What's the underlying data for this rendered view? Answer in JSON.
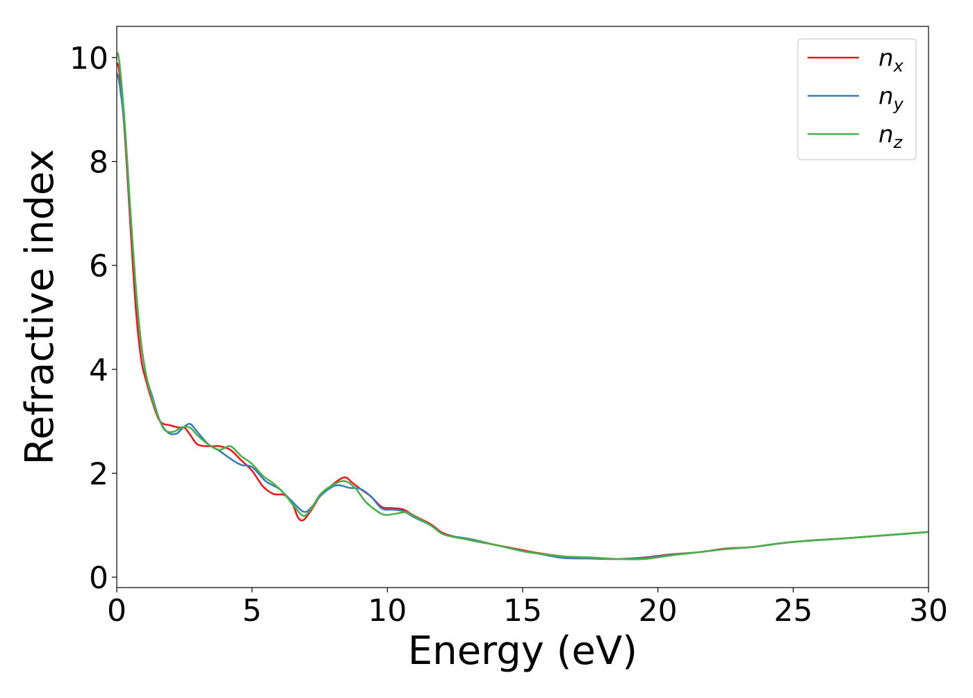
{
  "chart_data": {
    "type": "line",
    "xlabel": "Energy (eV)",
    "ylabel": "Refractive index",
    "xlim": [
      0,
      30
    ],
    "ylim": [
      -0.2,
      10.6
    ],
    "xticks": [
      0,
      5,
      10,
      15,
      20,
      25,
      30
    ],
    "yticks": [
      0,
      2,
      4,
      6,
      8,
      10
    ],
    "xtick_labels": [
      "0",
      "5",
      "10",
      "15",
      "20",
      "25",
      "30"
    ],
    "ytick_labels": [
      "0",
      "2",
      "4",
      "6",
      "8",
      "10"
    ],
    "grid": false,
    "legend_position": "top-right",
    "series": [
      {
        "name": "n_x",
        "legend_base": "n",
        "legend_sub": "x",
        "color": "#e41a1c",
        "points": [
          [
            0,
            9.9
          ],
          [
            0.1,
            9.7
          ],
          [
            0.3,
            8.5
          ],
          [
            0.5,
            6.8
          ],
          [
            0.7,
            5.2
          ],
          [
            0.9,
            4.2
          ],
          [
            1.1,
            3.75
          ],
          [
            1.3,
            3.4
          ],
          [
            1.6,
            3.0
          ],
          [
            2.0,
            2.92
          ],
          [
            2.3,
            2.88
          ],
          [
            2.5,
            2.88
          ],
          [
            2.7,
            2.75
          ],
          [
            3.0,
            2.55
          ],
          [
            3.5,
            2.52
          ],
          [
            3.8,
            2.52
          ],
          [
            4.2,
            2.45
          ],
          [
            4.6,
            2.25
          ],
          [
            5.0,
            2.05
          ],
          [
            5.4,
            1.75
          ],
          [
            5.8,
            1.6
          ],
          [
            6.2,
            1.58
          ],
          [
            6.5,
            1.4
          ],
          [
            6.7,
            1.15
          ],
          [
            6.9,
            1.1
          ],
          [
            7.2,
            1.3
          ],
          [
            7.5,
            1.55
          ],
          [
            7.9,
            1.75
          ],
          [
            8.4,
            1.92
          ],
          [
            8.7,
            1.82
          ],
          [
            9.0,
            1.7
          ],
          [
            9.4,
            1.55
          ],
          [
            9.8,
            1.35
          ],
          [
            10.2,
            1.33
          ],
          [
            10.6,
            1.3
          ],
          [
            11.0,
            1.18
          ],
          [
            11.6,
            1.02
          ],
          [
            12.1,
            0.84
          ],
          [
            13.0,
            0.72
          ],
          [
            14.0,
            0.62
          ],
          [
            15.0,
            0.52
          ],
          [
            15.5,
            0.47
          ],
          [
            16.5,
            0.4
          ],
          [
            17.5,
            0.36
          ],
          [
            18.5,
            0.35
          ],
          [
            19.5,
            0.38
          ],
          [
            20.5,
            0.44
          ],
          [
            21.5,
            0.48
          ],
          [
            22.5,
            0.55
          ],
          [
            23.5,
            0.58
          ],
          [
            24.5,
            0.65
          ],
          [
            25.5,
            0.7
          ],
          [
            27.0,
            0.75
          ],
          [
            28.5,
            0.81
          ],
          [
            30.0,
            0.87
          ]
        ]
      },
      {
        "name": "n_y",
        "legend_base": "n",
        "legend_sub": "y",
        "color": "#377eb8",
        "points": [
          [
            0,
            9.7
          ],
          [
            0.1,
            9.5
          ],
          [
            0.3,
            8.6
          ],
          [
            0.5,
            7.0
          ],
          [
            0.7,
            5.6
          ],
          [
            0.9,
            4.5
          ],
          [
            1.1,
            3.85
          ],
          [
            1.3,
            3.5
          ],
          [
            1.6,
            3.0
          ],
          [
            1.9,
            2.78
          ],
          [
            2.2,
            2.76
          ],
          [
            2.4,
            2.85
          ],
          [
            2.7,
            2.95
          ],
          [
            3.0,
            2.78
          ],
          [
            3.4,
            2.55
          ],
          [
            3.8,
            2.43
          ],
          [
            4.2,
            2.28
          ],
          [
            4.6,
            2.16
          ],
          [
            5.0,
            2.12
          ],
          [
            5.5,
            1.85
          ],
          [
            6.0,
            1.7
          ],
          [
            6.4,
            1.5
          ],
          [
            6.9,
            1.26
          ],
          [
            7.2,
            1.35
          ],
          [
            7.5,
            1.55
          ],
          [
            7.9,
            1.72
          ],
          [
            8.2,
            1.77
          ],
          [
            8.6,
            1.72
          ],
          [
            9.0,
            1.7
          ],
          [
            9.4,
            1.55
          ],
          [
            9.8,
            1.32
          ],
          [
            10.2,
            1.3
          ],
          [
            10.6,
            1.27
          ],
          [
            11.0,
            1.15
          ],
          [
            11.6,
            1.0
          ],
          [
            12.1,
            0.82
          ],
          [
            13.0,
            0.74
          ],
          [
            14.0,
            0.62
          ],
          [
            15.0,
            0.5
          ],
          [
            15.5,
            0.46
          ],
          [
            16.5,
            0.37
          ],
          [
            17.5,
            0.36
          ],
          [
            18.5,
            0.35
          ],
          [
            19.5,
            0.37
          ],
          [
            20.5,
            0.43
          ],
          [
            21.5,
            0.48
          ],
          [
            22.5,
            0.54
          ],
          [
            23.5,
            0.58
          ],
          [
            24.5,
            0.65
          ],
          [
            25.5,
            0.7
          ],
          [
            27.0,
            0.75
          ],
          [
            28.5,
            0.81
          ],
          [
            30.0,
            0.87
          ]
        ]
      },
      {
        "name": "n_z",
        "legend_base": "n",
        "legend_sub": "z",
        "color": "#4daf4a",
        "points": [
          [
            0,
            10.1
          ],
          [
            0.1,
            9.9
          ],
          [
            0.3,
            8.7
          ],
          [
            0.5,
            7.1
          ],
          [
            0.7,
            5.6
          ],
          [
            0.9,
            4.5
          ],
          [
            1.1,
            3.85
          ],
          [
            1.3,
            3.45
          ],
          [
            1.6,
            3.0
          ],
          [
            1.8,
            2.82
          ],
          [
            2.1,
            2.8
          ],
          [
            2.4,
            2.88
          ],
          [
            2.7,
            2.88
          ],
          [
            3.0,
            2.72
          ],
          [
            3.4,
            2.55
          ],
          [
            3.8,
            2.45
          ],
          [
            4.2,
            2.52
          ],
          [
            4.6,
            2.33
          ],
          [
            5.0,
            2.18
          ],
          [
            5.4,
            1.95
          ],
          [
            5.8,
            1.8
          ],
          [
            6.2,
            1.6
          ],
          [
            6.5,
            1.4
          ],
          [
            6.9,
            1.18
          ],
          [
            7.2,
            1.33
          ],
          [
            7.5,
            1.58
          ],
          [
            7.9,
            1.75
          ],
          [
            8.4,
            1.85
          ],
          [
            8.8,
            1.72
          ],
          [
            9.2,
            1.45
          ],
          [
            9.6,
            1.28
          ],
          [
            9.9,
            1.2
          ],
          [
            10.3,
            1.22
          ],
          [
            10.7,
            1.25
          ],
          [
            11.0,
            1.17
          ],
          [
            11.6,
            1.0
          ],
          [
            12.1,
            0.82
          ],
          [
            13.0,
            0.72
          ],
          [
            14.0,
            0.62
          ],
          [
            15.0,
            0.5
          ],
          [
            15.5,
            0.46
          ],
          [
            16.5,
            0.4
          ],
          [
            17.5,
            0.38
          ],
          [
            18.5,
            0.35
          ],
          [
            19.5,
            0.35
          ],
          [
            20.5,
            0.42
          ],
          [
            21.5,
            0.48
          ],
          [
            22.5,
            0.54
          ],
          [
            23.5,
            0.58
          ],
          [
            24.5,
            0.65
          ],
          [
            25.5,
            0.7
          ],
          [
            27.0,
            0.75
          ],
          [
            28.5,
            0.81
          ],
          [
            30.0,
            0.87
          ]
        ]
      }
    ]
  }
}
